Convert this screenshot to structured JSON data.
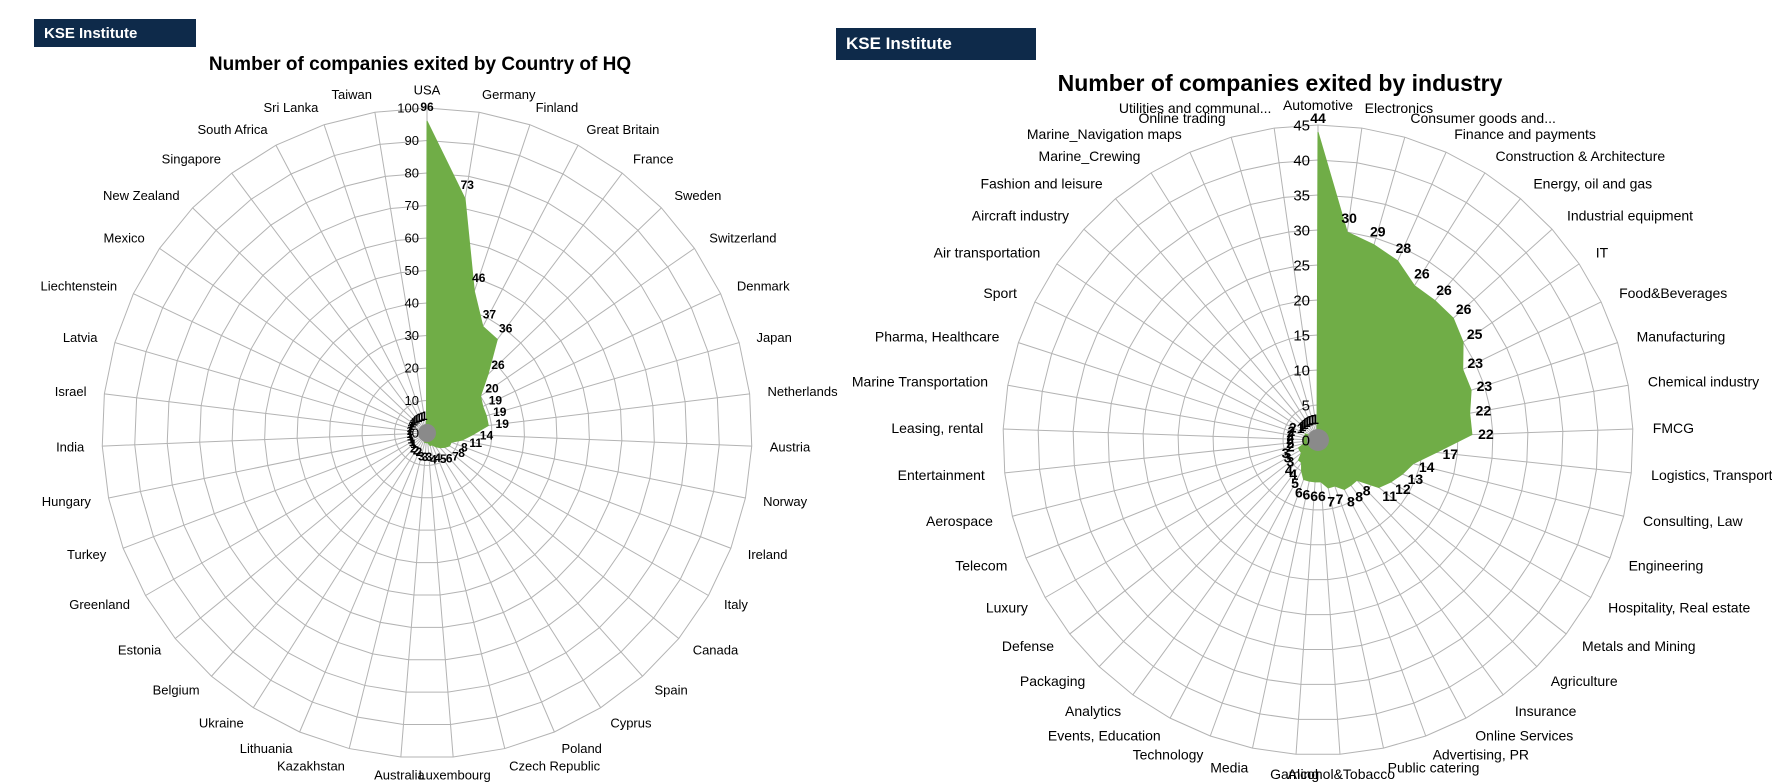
{
  "badges": {
    "left": "KSE Institute",
    "right": "KSE Institute"
  },
  "chart_data": [
    {
      "type": "radar",
      "title": "Number of companies exited by Country of HQ",
      "ylim": [
        0,
        100
      ],
      "ticks": [
        0,
        10,
        20,
        30,
        40,
        50,
        60,
        70,
        80,
        90,
        100
      ],
      "grid": true,
      "fill_color": "#70ad47",
      "categories": [
        "USA",
        "Germany",
        "Finland",
        "Great Britain",
        "France",
        "Sweden",
        "Switzerland",
        "Denmark",
        "Japan",
        "Netherlands",
        "Austria",
        "Norway",
        "Ireland",
        "Italy",
        "Canada",
        "Spain",
        "Cyprus",
        "Poland",
        "Czech Republic",
        "Luxembourg",
        "Australia",
        "Kazakhstan",
        "Lithuania",
        "Ukraine",
        "Belgium",
        "Estonia",
        "Greenland",
        "Turkey",
        "Hungary",
        "India",
        "Israel",
        "Latvia",
        "Liechtenstein",
        "Mexico",
        "New Zealand",
        "Singapore",
        "South Africa",
        "Sri Lanka",
        "Taiwan"
      ],
      "values": [
        96,
        73,
        46,
        37,
        36,
        26,
        20,
        19,
        19,
        19,
        14,
        11,
        8,
        8,
        7,
        6,
        5,
        4,
        4,
        3,
        3,
        3,
        2,
        2,
        2,
        1,
        1,
        1,
        1,
        1,
        1,
        1,
        1,
        1,
        1,
        1,
        1,
        1,
        1
      ]
    },
    {
      "type": "radar",
      "title": "Number of companies exited by industry",
      "ylim": [
        0,
        45
      ],
      "ticks": [
        0,
        5,
        10,
        15,
        20,
        25,
        30,
        35,
        40,
        45
      ],
      "grid": true,
      "fill_color": "#70ad47",
      "categories": [
        "Automotive",
        "Electronics",
        "Consumer goods and...",
        "Finance and payments",
        "Construction & Architecture",
        "Energy, oil and gas",
        "Industrial equipment",
        "IT",
        "Food&Beverages",
        "Manufacturing",
        "Chemical industry",
        "FMCG",
        "Logistics, Transport",
        "Consulting, Law",
        "Engineering",
        "Hospitality, Real estate",
        "Metals and Mining",
        "Agriculture",
        "Insurance",
        "Online Services",
        "Advertising, PR",
        "Public catering",
        "Alcohol&Tobacco",
        "Gaming",
        "Media",
        "Technology",
        "Events, Education",
        "Analytics",
        "Packaging",
        "Defense",
        "Luxury",
        "Telecom",
        "Aerospace",
        "Entertainment",
        "Leasing, rental",
        "Marine Transportation",
        "Pharma, Healthcare",
        "Sport",
        "Air transportation",
        "Aircraft industry",
        "Fashion and leisure",
        "Marine_Crewing",
        "Marine_Navigation maps",
        "Online trading",
        "Utilities and communal..."
      ],
      "values": [
        44,
        30,
        29,
        28,
        26,
        26,
        26,
        25,
        23,
        23,
        22,
        22,
        17,
        14,
        13,
        12,
        11,
        8,
        8,
        8,
        7,
        7,
        6,
        6,
        6,
        6,
        5,
        4,
        4,
        3,
        3,
        3,
        2,
        2,
        2,
        2,
        2,
        2,
        1,
        1,
        1,
        1,
        1,
        1,
        1
      ]
    }
  ]
}
